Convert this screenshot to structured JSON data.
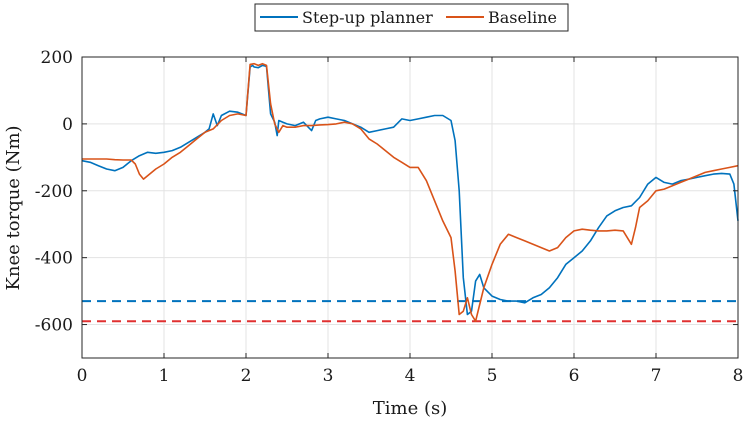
{
  "chart_data": {
    "type": "line",
    "xlabel": "Time (s)",
    "ylabel": "Knee torque (Nm)",
    "xlim": [
      0,
      8
    ],
    "ylim": [
      -700,
      200
    ],
    "xticks": [
      0,
      1,
      2,
      3,
      4,
      5,
      6,
      7,
      8
    ],
    "yticks": [
      200,
      0,
      -200,
      -400,
      -600
    ],
    "xtick_labels": [
      "0",
      "1",
      "2",
      "3",
      "4",
      "5",
      "6",
      "7",
      "8"
    ],
    "ytick_labels": [
      "200",
      "0",
      "-200",
      "-400",
      "-600"
    ],
    "grid": true,
    "legend": "top-center",
    "series": [
      {
        "name": "Step-up planner",
        "color": "#0072BD",
        "x": [
          0,
          0.1,
          0.2,
          0.3,
          0.4,
          0.5,
          0.6,
          0.7,
          0.8,
          0.9,
          1.0,
          1.1,
          1.2,
          1.3,
          1.4,
          1.5,
          1.55,
          1.6,
          1.65,
          1.7,
          1.8,
          1.9,
          2.0,
          2.05,
          2.08,
          2.1,
          2.15,
          2.2,
          2.25,
          2.3,
          2.35,
          2.38,
          2.4,
          2.45,
          2.5,
          2.6,
          2.7,
          2.8,
          2.85,
          2.9,
          3.0,
          3.1,
          3.2,
          3.3,
          3.4,
          3.5,
          3.6,
          3.7,
          3.8,
          3.9,
          4.0,
          4.1,
          4.2,
          4.3,
          4.4,
          4.5,
          4.55,
          4.6,
          4.65,
          4.7,
          4.75,
          4.8,
          4.85,
          4.9,
          5.0,
          5.1,
          5.2,
          5.3,
          5.4,
          5.5,
          5.6,
          5.7,
          5.8,
          5.9,
          6.0,
          6.1,
          6.2,
          6.3,
          6.4,
          6.5,
          6.6,
          6.7,
          6.8,
          6.9,
          7.0,
          7.1,
          7.2,
          7.3,
          7.4,
          7.5,
          7.6,
          7.7,
          7.8,
          7.9,
          7.95,
          8.0
        ],
        "y": [
          -110,
          -115,
          -125,
          -135,
          -140,
          -130,
          -110,
          -95,
          -85,
          -88,
          -85,
          -80,
          -70,
          -55,
          -40,
          -25,
          -15,
          30,
          -5,
          25,
          38,
          35,
          25,
          170,
          175,
          170,
          168,
          175,
          172,
          30,
          5,
          -35,
          10,
          5,
          0,
          -5,
          5,
          -20,
          10,
          15,
          20,
          15,
          10,
          0,
          -10,
          -25,
          -20,
          -15,
          -10,
          15,
          10,
          15,
          20,
          25,
          25,
          10,
          -50,
          -200,
          -460,
          -570,
          -560,
          -470,
          -450,
          -490,
          -515,
          -525,
          -530,
          -530,
          -535,
          -520,
          -510,
          -490,
          -460,
          -420,
          -400,
          -380,
          -350,
          -310,
          -275,
          -260,
          -250,
          -245,
          -220,
          -180,
          -160,
          -175,
          -180,
          -170,
          -165,
          -160,
          -155,
          -150,
          -148,
          -150,
          -180,
          -290
        ]
      },
      {
        "name": "Baseline",
        "color": "#D95319",
        "x": [
          0,
          0.1,
          0.2,
          0.3,
          0.4,
          0.5,
          0.6,
          0.65,
          0.7,
          0.75,
          0.8,
          0.9,
          1.0,
          1.1,
          1.2,
          1.3,
          1.4,
          1.5,
          1.6,
          1.7,
          1.8,
          1.9,
          2.0,
          2.05,
          2.1,
          2.15,
          2.2,
          2.25,
          2.3,
          2.35,
          2.4,
          2.45,
          2.5,
          2.6,
          2.7,
          2.8,
          2.9,
          3.0,
          3.1,
          3.2,
          3.3,
          3.4,
          3.5,
          3.6,
          3.7,
          3.8,
          3.9,
          4.0,
          4.1,
          4.2,
          4.3,
          4.4,
          4.5,
          4.55,
          4.6,
          4.65,
          4.7,
          4.75,
          4.8,
          4.85,
          4.9,
          5.0,
          5.1,
          5.2,
          5.3,
          5.4,
          5.5,
          5.6,
          5.7,
          5.8,
          5.9,
          6.0,
          6.1,
          6.2,
          6.3,
          6.4,
          6.5,
          6.6,
          6.7,
          6.75,
          6.8,
          6.9,
          7.0,
          7.1,
          7.2,
          7.3,
          7.4,
          7.5,
          7.6,
          7.7,
          7.8,
          7.9,
          8.0
        ],
        "y": [
          -105,
          -105,
          -105,
          -105,
          -107,
          -108,
          -108,
          -120,
          -150,
          -165,
          -155,
          -135,
          -120,
          -100,
          -85,
          -65,
          -45,
          -25,
          -15,
          10,
          25,
          30,
          25,
          178,
          180,
          175,
          180,
          175,
          60,
          0,
          -25,
          -5,
          -10,
          -10,
          -5,
          -5,
          -3,
          -2,
          0,
          5,
          0,
          -15,
          -45,
          -60,
          -80,
          -100,
          -115,
          -130,
          -130,
          -170,
          -230,
          -290,
          -340,
          -440,
          -570,
          -560,
          -520,
          -570,
          -590,
          -540,
          -490,
          -420,
          -360,
          -330,
          -340,
          -350,
          -360,
          -370,
          -380,
          -370,
          -340,
          -320,
          -315,
          -318,
          -320,
          -320,
          -318,
          -320,
          -360,
          -310,
          -250,
          -230,
          -200,
          -195,
          -185,
          -175,
          -165,
          -155,
          -145,
          -140,
          -135,
          -130,
          -125
        ]
      }
    ],
    "reference_lines": [
      {
        "y": -530,
        "color": "#0072BD",
        "style": "dashed"
      },
      {
        "y": -590,
        "color": "#E03030",
        "style": "dashed"
      }
    ]
  }
}
